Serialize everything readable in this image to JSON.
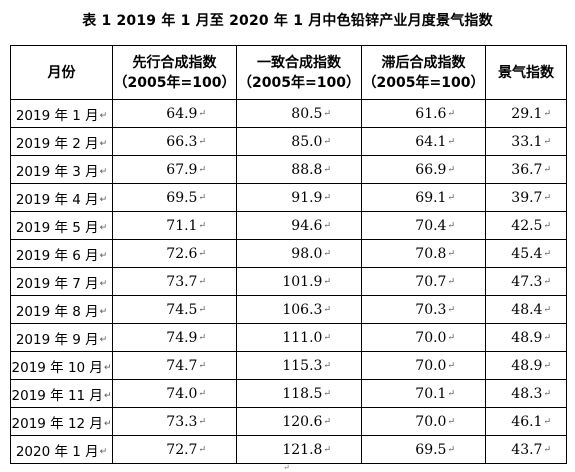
{
  "title": "表 1  2019 年 1 月至 2020 年 1 月中色铅锌产业月度景气指数",
  "columns": [
    {
      "line1": "月份",
      "line2": ""
    },
    {
      "line1": "先行合成指数",
      "line2": "（2005年=100）"
    },
    {
      "line1": "一致合成指数",
      "line2": "（2005年=100）"
    },
    {
      "line1": "滞后合成指数",
      "line2": "（2005年=100）"
    },
    {
      "line1": "景气指数",
      "line2": ""
    }
  ],
  "paragraph_mark": "↵",
  "rows": [
    {
      "month": "2019 年 1 月",
      "leading": "64.9",
      "coincident": "80.5",
      "lagging": "61.6",
      "index": "29.1"
    },
    {
      "month": "2019 年 2 月",
      "leading": "66.3",
      "coincident": "85.0",
      "lagging": "64.1",
      "index": "33.1"
    },
    {
      "month": "2019 年 3 月",
      "leading": "67.9",
      "coincident": "88.8",
      "lagging": "66.9",
      "index": "36.7"
    },
    {
      "month": "2019 年 4 月",
      "leading": "69.5",
      "coincident": "91.9",
      "lagging": "69.1",
      "index": "39.7"
    },
    {
      "month": "2019 年 5 月",
      "leading": "71.1",
      "coincident": "94.6",
      "lagging": "70.4",
      "index": "42.5"
    },
    {
      "month": "2019 年 6 月",
      "leading": "72.6",
      "coincident": "98.0",
      "lagging": "70.8",
      "index": "45.4"
    },
    {
      "month": "2019 年 7 月",
      "leading": "73.7",
      "coincident": "101.9",
      "lagging": "70.7",
      "index": "47.3"
    },
    {
      "month": "2019 年 8 月",
      "leading": "74.5",
      "coincident": "106.3",
      "lagging": "70.3",
      "index": "48.4"
    },
    {
      "month": "2019 年 9 月",
      "leading": "74.9",
      "coincident": "111.0",
      "lagging": "70.0",
      "index": "48.9"
    },
    {
      "month": "2019 年 10 月",
      "leading": "74.7",
      "coincident": "115.3",
      "lagging": "70.0",
      "index": "48.9"
    },
    {
      "month": "2019 年 11 月",
      "leading": "74.0",
      "coincident": "118.5",
      "lagging": "70.1",
      "index": "48.3"
    },
    {
      "month": "2019 年 12 月",
      "leading": "73.3",
      "coincident": "120.6",
      "lagging": "70.0",
      "index": "46.1"
    },
    {
      "month": "2020 年 1 月",
      "leading": "72.7",
      "coincident": "121.8",
      "lagging": "69.5",
      "index": "43.7"
    }
  ]
}
